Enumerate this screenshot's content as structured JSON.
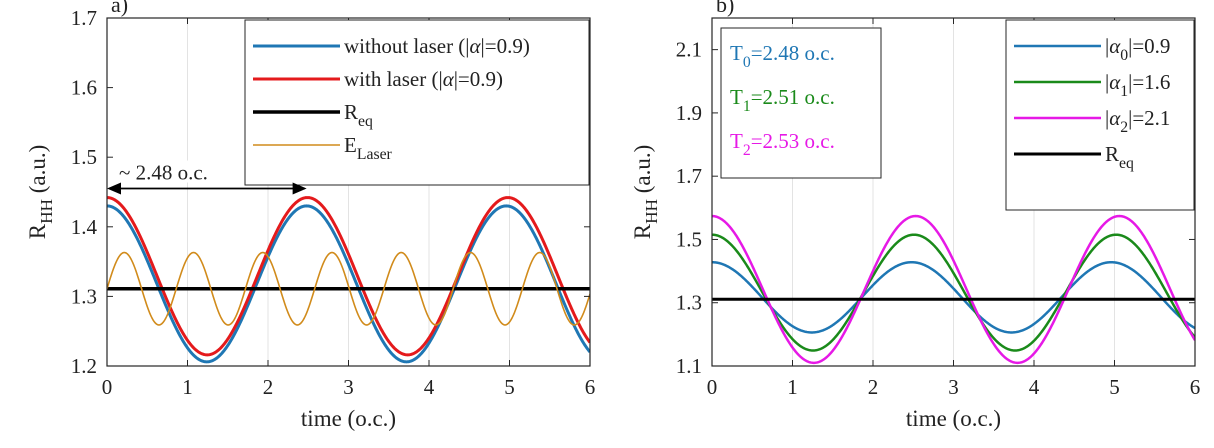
{
  "chart_data": [
    {
      "panel": "a)",
      "type": "line",
      "xlabel": "time (o.c.)",
      "ylabel": {
        "main": "R",
        "sub": "HH",
        "rest": " (a.u.)"
      },
      "xlim": [
        0,
        6
      ],
      "ylim": [
        1.2,
        1.7
      ],
      "xticks": [
        0,
        1,
        2,
        3,
        4,
        5,
        6
      ],
      "yticks": [
        1.2,
        1.3,
        1.4,
        1.5,
        1.6,
        1.7
      ],
      "ytick_labels": [
        "1.2",
        "1.3",
        "1.4",
        "1.5",
        "1.6",
        "1.7"
      ],
      "grid": "vertical",
      "legend_position": "top-right",
      "annotation": {
        "text": "~ 2.48 o.c.",
        "x_from": 0,
        "x_to": 2.48,
        "y": 1.455
      },
      "series": [
        {
          "legend": {
            "main": "without laser (|",
            "greek": "α",
            "rest": "|=0.9)"
          },
          "color": "#1f77b4",
          "stroke_width": 3,
          "kind": "cos",
          "mean": 1.318,
          "amp": 0.112,
          "period": 2.48,
          "phase": 0
        },
        {
          "legend": {
            "main": "with laser (|",
            "greek": "α",
            "rest": "|=0.9)"
          },
          "color": "#e41a1c",
          "stroke_width": 3,
          "kind": "cos",
          "mean": 1.329,
          "amp": 0.113,
          "period": 2.49,
          "phase": 0
        },
        {
          "legend": {
            "main": "R",
            "sub": "eq"
          },
          "color": "#000000",
          "stroke_width": 3.5,
          "kind": "const",
          "value": 1.311
        },
        {
          "legend": {
            "main": "E",
            "sub": "Laser"
          },
          "color": "#d18b1b",
          "stroke_width": 1.6,
          "kind": "sin",
          "mean": 1.311,
          "amp": 0.052,
          "period": 0.86,
          "phase": 0
        }
      ]
    },
    {
      "panel": "b)",
      "type": "line",
      "xlabel": "time (o.c.)",
      "ylabel": {
        "main": "R",
        "sub": "HH",
        "rest": " (a.u.)"
      },
      "xlim": [
        0,
        6
      ],
      "ylim": [
        1.1,
        2.2
      ],
      "xticks": [
        0,
        1,
        2,
        3,
        4,
        5,
        6
      ],
      "yticks": [
        1.1,
        1.3,
        1.5,
        1.7,
        1.9,
        2.1
      ],
      "ytick_labels": [
        "1.1",
        "1.3",
        "1.5",
        "1.7",
        "1.9",
        "2.1"
      ],
      "grid": "vertical",
      "legend_position": "top-right",
      "period_box": [
        {
          "main": "T",
          "sub": "0",
          "rest": "=2.48 o.c.",
          "color": "#1f77b4"
        },
        {
          "main": "T",
          "sub": "1",
          "rest": "=2.51 o.c.",
          "color": "#1a8a1a"
        },
        {
          "main": "T",
          "sub": "2",
          "rest": "=2.53 o.c.",
          "color": "#e619e6"
        }
      ],
      "series": [
        {
          "legend": {
            "main": "|",
            "greek": "α",
            "sub": "0",
            "rest": "|=0.9"
          },
          "color": "#1f77b4",
          "stroke_width": 2.5,
          "kind": "cos",
          "mean": 1.317,
          "amp": 0.111,
          "period": 2.48,
          "phase": 0
        },
        {
          "legend": {
            "main": "|",
            "greek": "α",
            "sub": "1",
            "rest": "|=1.6"
          },
          "color": "#1a8a1a",
          "stroke_width": 2.5,
          "kind": "cos",
          "mean": 1.332,
          "amp": 0.183,
          "period": 2.51,
          "phase": 0
        },
        {
          "legend": {
            "main": "|",
            "greek": "α",
            "sub": "2",
            "rest": "|=2.1"
          },
          "color": "#e619e6",
          "stroke_width": 2.5,
          "kind": "cos",
          "mean": 1.342,
          "amp": 0.232,
          "period": 2.53,
          "phase": 0
        },
        {
          "legend": {
            "main": "R",
            "sub": "eq"
          },
          "color": "#000000",
          "stroke_width": 3,
          "kind": "const",
          "value": 1.311
        }
      ]
    }
  ]
}
